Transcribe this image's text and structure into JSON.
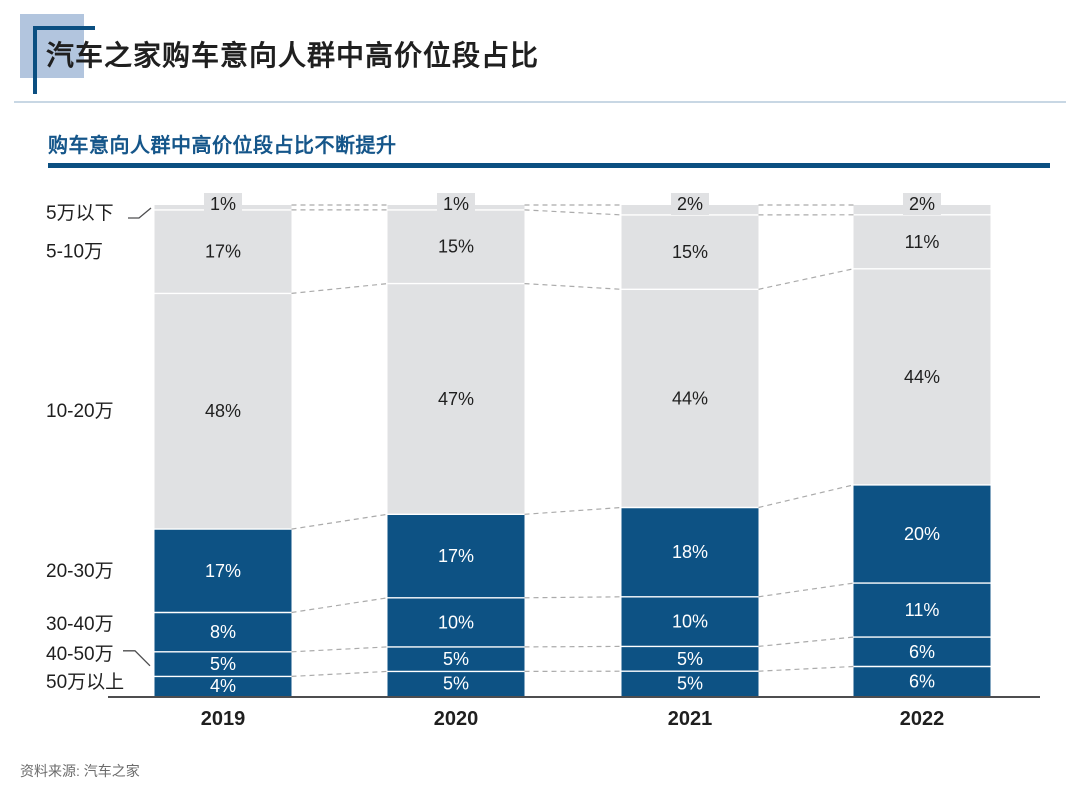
{
  "header": {
    "title": "汽车之家购车意向人群中高价位段占比"
  },
  "subtitle": "购车意向人群中高价位段占比不断提升",
  "footer": {
    "source": "资料来源: 汽车之家"
  },
  "chart_data": {
    "type": "bar",
    "stacked": true,
    "orientation": "vertical",
    "stack_order": "top-to-bottom",
    "title": "购车意向人群中高价位段占比不断提升",
    "categories": [
      "2019",
      "2020",
      "2021",
      "2022"
    ],
    "series": [
      {
        "name": "5万以下",
        "values": [
          1,
          1,
          2,
          2
        ],
        "color": "#E0E1E3",
        "label_color": "#1F1F1F"
      },
      {
        "name": "5-10万",
        "values": [
          17,
          15,
          15,
          11
        ],
        "color": "#E0E1E3",
        "label_color": "#1F1F1F"
      },
      {
        "name": "10-20万",
        "values": [
          48,
          47,
          44,
          44
        ],
        "color": "#E0E1E3",
        "label_color": "#1F1F1F"
      },
      {
        "name": "20-30万",
        "values": [
          17,
          17,
          18,
          20
        ],
        "color": "#0D5284",
        "label_color": "#FFFFFF"
      },
      {
        "name": "30-40万",
        "values": [
          8,
          10,
          10,
          11
        ],
        "color": "#0D5284",
        "label_color": "#FFFFFF"
      },
      {
        "name": "40-50万",
        "values": [
          5,
          5,
          5,
          6
        ],
        "color": "#0D5284",
        "label_color": "#FFFFFF"
      },
      {
        "name": "50万以上",
        "values": [
          4,
          5,
          5,
          6
        ],
        "color": "#0D5284",
        "label_color": "#FFFFFF"
      }
    ],
    "value_suffix": "%",
    "ylim": [
      0,
      100
    ],
    "grid": false,
    "legend_position": "row-labels-left",
    "style": {
      "bar_blue": "#0D5284",
      "bar_gray": "#E0E1E3",
      "separator_color": "#FFFFFF",
      "dash_color": "#ABABAB",
      "axis_color": "#4D4D4F",
      "text_dark": "#1F1F1F",
      "text_white": "#FFFFFF",
      "accent_blue": "#0B4F81",
      "subtitle_blue": "#15568A",
      "deco_light_blue": "#B2C5DE",
      "source_gray": "#6B6B6B"
    }
  }
}
